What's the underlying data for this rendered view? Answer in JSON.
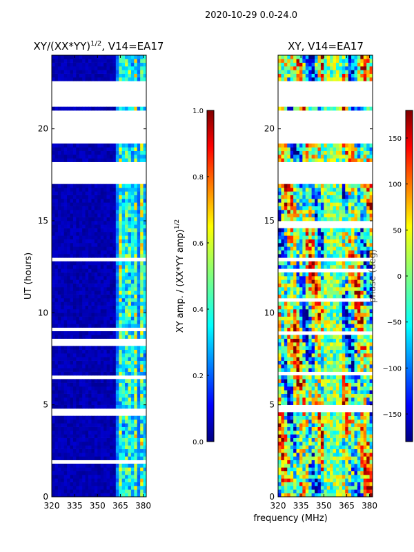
{
  "figure": {
    "suptitle": "2020-10-29 0.0-24.0",
    "xlabel_shared": "frequency (MHz)"
  },
  "chart_data": [
    {
      "type": "heatmap",
      "panel": "amplitude",
      "title_main": "XY/(XX*YY)",
      "title_sup": "1/2",
      "title_tail": ", V14=EA17",
      "ylabel": "UT (hours)",
      "xlim": [
        320,
        382
      ],
      "ylim": [
        0,
        24
      ],
      "xticks": [
        "320",
        "335",
        "350",
        "365",
        "380"
      ],
      "xtick_values": [
        320,
        335,
        350,
        365,
        380
      ],
      "yticks": [
        "0",
        "5",
        "10",
        "15",
        "20"
      ],
      "ytick_values": [
        0,
        5,
        10,
        15,
        20
      ],
      "colorbar": {
        "range": [
          0.0,
          1.0
        ],
        "ticks": [
          "0.0",
          "0.2",
          "0.4",
          "0.6",
          "0.8",
          "1.0"
        ],
        "tick_values": [
          0.0,
          0.2,
          0.4,
          0.6,
          0.8,
          1.0
        ],
        "label_main": "XY amp. / (XX*YY amp)",
        "label_sup": "1/2",
        "colormap": "jet"
      },
      "gaps_hours": [
        [
          4.45,
          4.75
        ],
        [
          8.5,
          8.65
        ],
        [
          12.85,
          13.05
        ],
        [
          17.0,
          18.2
        ],
        [
          19.3,
          21.0
        ],
        [
          21.15,
          22.6
        ]
      ],
      "bright_band_mhz": [
        [
          362,
          382
        ]
      ],
      "low_value_level": 0.0
    },
    {
      "type": "heatmap",
      "panel": "phase",
      "title_main": "XY, V14=EA17",
      "ylabel": "",
      "xlim": [
        320,
        382
      ],
      "ylim": [
        0,
        24
      ],
      "xticks": [
        "320",
        "335",
        "350",
        "365",
        "380"
      ],
      "xtick_values": [
        320,
        335,
        350,
        365,
        380
      ],
      "yticks": [
        "0",
        "5",
        "10",
        "15",
        "20"
      ],
      "ytick_values": [
        0,
        5,
        10,
        15,
        20
      ],
      "colorbar": {
        "range": [
          -180,
          180
        ],
        "ticks": [
          "−150",
          "−100",
          "−50",
          "0",
          "50",
          "100",
          "150"
        ],
        "tick_values": [
          -150,
          -100,
          -50,
          0,
          50,
          100,
          150
        ],
        "label_main": "phase (deg)",
        "colormap": "jet"
      },
      "gaps_hours": [
        [
          4.65,
          4.9
        ],
        [
          8.8,
          8.95
        ],
        [
          12.9,
          13.1
        ],
        [
          17.0,
          18.2
        ],
        [
          19.3,
          21.0
        ],
        [
          21.15,
          22.6
        ]
      ]
    }
  ],
  "colors": {
    "jet_0": "#00007f",
    "jet_1": "#0000ff",
    "jet_2": "#00ffff",
    "jet_3": "#7fff7f",
    "jet_4": "#ffff00",
    "jet_5": "#ff0000",
    "jet_6": "#7f0000",
    "axis": "#000000"
  }
}
